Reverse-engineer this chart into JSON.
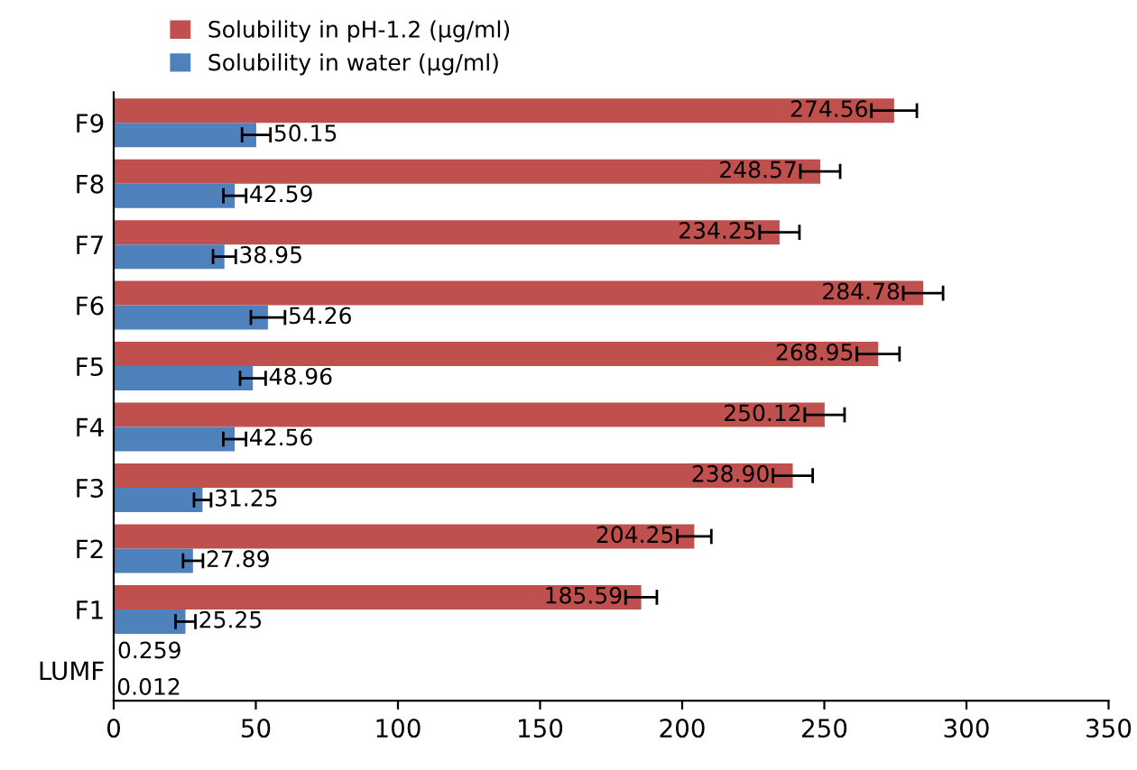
{
  "chart_data": {
    "type": "bar",
    "orientation": "horizontal",
    "categories": [
      "F9",
      "F8",
      "F7",
      "F6",
      "F5",
      "F4",
      "F3",
      "F2",
      "F1",
      "LUMF"
    ],
    "series": [
      {
        "name": "Solubility in pH-1.2 (µg/ml)",
        "color": "#c0504d",
        "values": [
          274.56,
          248.57,
          234.25,
          284.78,
          268.95,
          250.12,
          238.9,
          204.25,
          185.59,
          0.259
        ],
        "value_labels": [
          "274.56",
          "248.57",
          "234.25",
          "284.78",
          "268.95",
          "250.12",
          "238.90",
          "204.25",
          "185.59",
          "0.259"
        ],
        "errors": [
          8,
          7,
          7,
          7,
          7.5,
          7,
          7,
          6,
          5.5,
          null
        ]
      },
      {
        "name": "Solubility in water (µg/ml)",
        "color": "#4f81bd",
        "values": [
          50.15,
          42.59,
          38.95,
          54.26,
          48.96,
          42.56,
          31.25,
          27.89,
          25.25,
          0.012
        ],
        "value_labels": [
          "50.15",
          "42.59",
          "38.95",
          "54.26",
          "48.96",
          "42.56",
          "31.25",
          "27.89",
          "25.25",
          "0.012"
        ],
        "errors": [
          5,
          4,
          4,
          6,
          4.5,
          4,
          3,
          3.5,
          3.5,
          null
        ]
      }
    ],
    "xlim": [
      0,
      350
    ],
    "xticks": [
      0,
      50,
      100,
      150,
      200,
      250,
      300,
      350
    ],
    "grid": false,
    "legend": "top left"
  }
}
